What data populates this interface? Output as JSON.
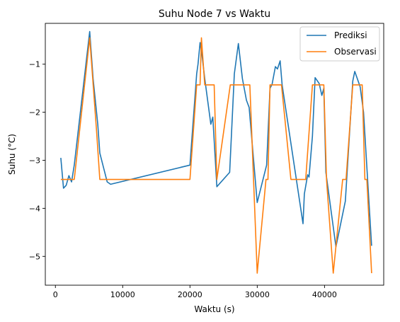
{
  "chart_data": {
    "type": "line",
    "title": "Suhu Node 7 vs Waktu",
    "xlabel": "Waktu (s)",
    "ylabel": "Suhu (°C)",
    "xlim": [
      -1500,
      48800
    ],
    "ylim": [
      -5.6,
      -0.15
    ],
    "xticks": [
      0,
      10000,
      20000,
      30000,
      40000
    ],
    "yticks": [
      -5,
      -4,
      -3,
      -2,
      -1
    ],
    "legend": {
      "position": "top-right"
    },
    "series": [
      {
        "name": "Prediksi",
        "color": "#1f77b4",
        "x": [
          800,
          1200,
          1600,
          2000,
          2400,
          2800,
          5100,
          5600,
          6300,
          6600,
          7700,
          8200,
          20000,
          21000,
          21200,
          21500,
          21800,
          22200,
          23100,
          23400,
          24000,
          25900,
          26600,
          27200,
          27800,
          28400,
          28800,
          30000,
          31400,
          31900,
          32200,
          32700,
          33000,
          33400,
          33700,
          36800,
          37000,
          37500,
          37700,
          38200,
          38600,
          39200,
          39600,
          39900,
          40200,
          41700,
          43100,
          44200,
          44500,
          45300,
          45800,
          47000
        ],
        "y": [
          -2.95,
          -3.58,
          -3.52,
          -3.32,
          -3.45,
          -3.1,
          -0.32,
          -1.3,
          -2.25,
          -2.85,
          -3.45,
          -3.5,
          -3.1,
          -1.2,
          -1.0,
          -0.55,
          -0.82,
          -1.3,
          -2.25,
          -2.1,
          -3.55,
          -3.25,
          -1.2,
          -0.57,
          -1.3,
          -1.75,
          -1.9,
          -3.88,
          -3.1,
          -1.5,
          -1.42,
          -1.05,
          -1.1,
          -0.93,
          -1.43,
          -4.32,
          -3.7,
          -3.3,
          -3.35,
          -2.5,
          -1.28,
          -1.4,
          -1.65,
          -1.5,
          -3.25,
          -4.8,
          -3.85,
          -1.35,
          -1.15,
          -1.47,
          -2.0,
          -4.78
        ]
      },
      {
        "name": "Observasi",
        "color": "#ff7f0e",
        "x": [
          800,
          2800,
          5100,
          6100,
          6600,
          20000,
          21000,
          21500,
          21700,
          22200,
          22500,
          23600,
          24000,
          26000,
          28900,
          30000,
          31300,
          31600,
          31900,
          32100,
          33600,
          35000,
          35500,
          36300,
          37200,
          38200,
          38800,
          39300,
          39900,
          40300,
          41300,
          42700,
          43200,
          44200,
          44600,
          45600,
          46000,
          46300,
          47000
        ],
        "y": [
          -3.4,
          -3.4,
          -0.45,
          -2.35,
          -3.4,
          -3.4,
          -1.43,
          -1.43,
          -0.45,
          -1.43,
          -1.43,
          -1.43,
          -3.4,
          -1.43,
          -1.43,
          -5.35,
          -3.4,
          -3.4,
          -1.43,
          -1.43,
          -1.43,
          -3.4,
          -3.4,
          -3.4,
          -3.4,
          -1.43,
          -1.43,
          -1.43,
          -1.43,
          -3.4,
          -5.35,
          -3.4,
          -3.4,
          -1.43,
          -1.43,
          -1.43,
          -3.4,
          -3.4,
          -5.35
        ]
      }
    ]
  }
}
